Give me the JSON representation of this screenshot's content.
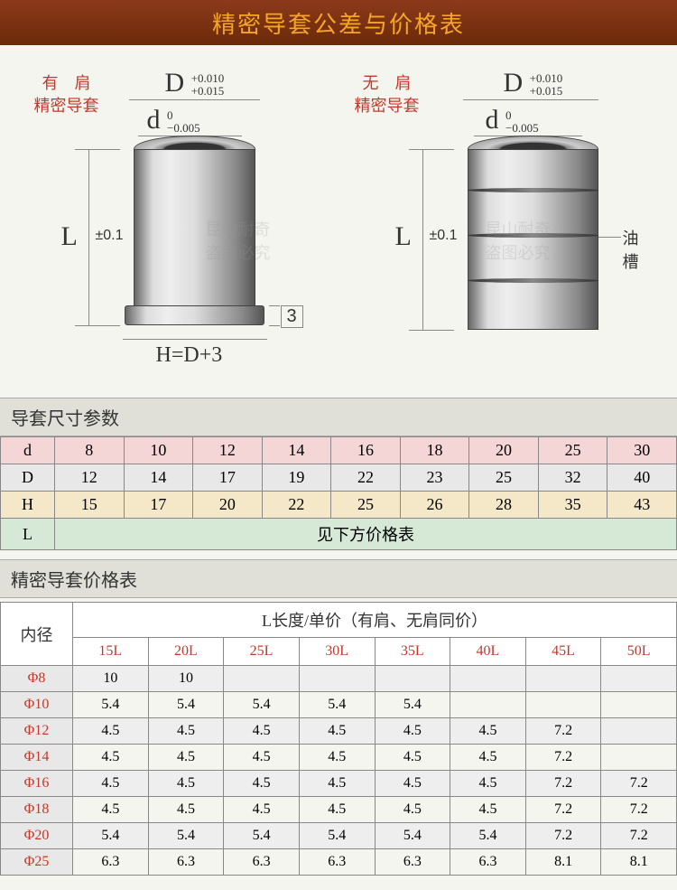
{
  "header": {
    "title": "精密导套公差与价格表"
  },
  "diagram_left": {
    "title_line1": "有　肩",
    "title_line2": "精密导套",
    "D_label": "D",
    "D_tol_top": "+0.010",
    "D_tol_bot": "+0.015",
    "d_label": "d",
    "d_tol_top": "0",
    "d_tol_bot": "−0.005",
    "L_label": "L",
    "L_tol": "±0.1",
    "shoulder": "3",
    "H_label": "H=D+3"
  },
  "diagram_right": {
    "title_line1": "无　肩",
    "title_line2": "精密导套",
    "D_label": "D",
    "D_tol_top": "+0.010",
    "D_tol_bot": "+0.015",
    "d_label": "d",
    "d_tol_top": "0",
    "d_tol_bot": "−0.005",
    "L_label": "L",
    "L_tol": "±0.1",
    "groove_label": "油槽"
  },
  "watermark": {
    "line1": "昆山耐奇",
    "line2": "盗图必究"
  },
  "param_section_title": "导套尺寸参数",
  "param_table": {
    "rows": [
      {
        "label": "d",
        "cells": [
          "8",
          "10",
          "12",
          "14",
          "16",
          "18",
          "20",
          "25",
          "30"
        ]
      },
      {
        "label": "D",
        "cells": [
          "12",
          "14",
          "17",
          "19",
          "22",
          "23",
          "25",
          "32",
          "40"
        ]
      },
      {
        "label": "H",
        "cells": [
          "15",
          "17",
          "20",
          "22",
          "25",
          "26",
          "28",
          "35",
          "43"
        ]
      }
    ],
    "L_label": "L",
    "L_text": "见下方价格表"
  },
  "price_section_title": "精密导套价格表",
  "price_table": {
    "inner_dia_label": "内径",
    "L_header": "L长度/单价（有肩、无肩同价）",
    "lengths": [
      "15L",
      "20L",
      "25L",
      "30L",
      "35L",
      "40L",
      "45L",
      "50L"
    ],
    "rows": [
      {
        "dia": "Φ8",
        "prices": [
          "10",
          "10",
          "",
          "",
          "",
          "",
          "",
          ""
        ]
      },
      {
        "dia": "Φ10",
        "prices": [
          "5.4",
          "5.4",
          "5.4",
          "5.4",
          "5.4",
          "",
          "",
          ""
        ]
      },
      {
        "dia": "Φ12",
        "prices": [
          "4.5",
          "4.5",
          "4.5",
          "4.5",
          "4.5",
          "4.5",
          "7.2",
          ""
        ]
      },
      {
        "dia": "Φ14",
        "prices": [
          "4.5",
          "4.5",
          "4.5",
          "4.5",
          "4.5",
          "4.5",
          "7.2",
          ""
        ]
      },
      {
        "dia": "Φ16",
        "prices": [
          "4.5",
          "4.5",
          "4.5",
          "4.5",
          "4.5",
          "4.5",
          "7.2",
          "7.2"
        ]
      },
      {
        "dia": "Φ18",
        "prices": [
          "4.5",
          "4.5",
          "4.5",
          "4.5",
          "4.5",
          "4.5",
          "7.2",
          "7.2"
        ]
      },
      {
        "dia": "Φ20",
        "prices": [
          "5.4",
          "5.4",
          "5.4",
          "5.4",
          "5.4",
          "5.4",
          "7.2",
          "7.2"
        ]
      },
      {
        "dia": "Φ25",
        "prices": [
          "6.3",
          "6.3",
          "6.3",
          "6.3",
          "6.3",
          "6.3",
          "8.1",
          "8.1"
        ]
      }
    ]
  }
}
